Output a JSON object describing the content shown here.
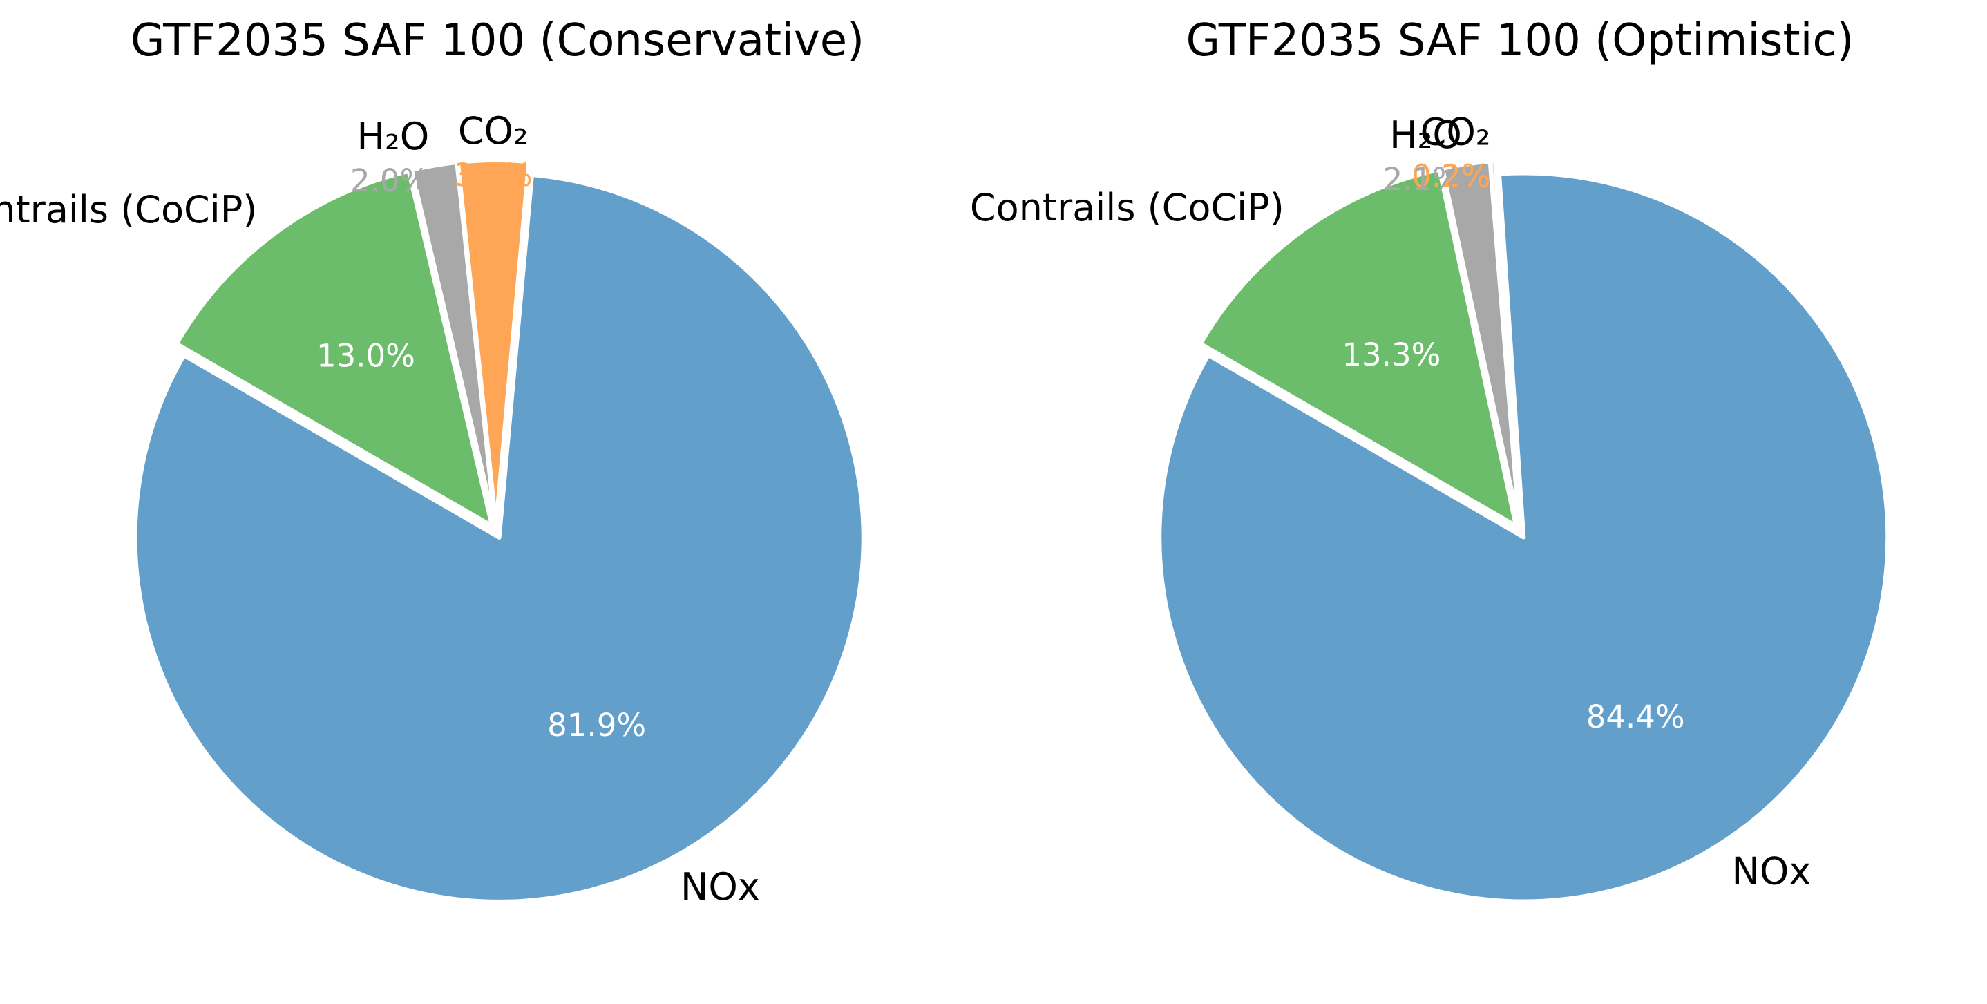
{
  "chart_data": [
    {
      "type": "pie",
      "title": "GTF2035 SAF 100 (Conservative)",
      "slices": [
        {
          "label": "NOx",
          "value": 81.9,
          "pct_label": "81.9%",
          "color": "#639fcb"
        },
        {
          "label": "CO₂",
          "value": 3.1,
          "pct_label": "3.1%",
          "color": "#fea656"
        },
        {
          "label": "H₂O",
          "value": 2.0,
          "pct_label": "2.0%",
          "color": "#a8a8a8"
        },
        {
          "label": "Contrails (CoCiP)",
          "value": 13.0,
          "pct_label": "13.0%",
          "color": "#6cbd6b"
        }
      ]
    },
    {
      "type": "pie",
      "title": "GTF2035 SAF 100 (Optimistic)",
      "slices": [
        {
          "label": "NOx",
          "value": 84.4,
          "pct_label": "84.4%",
          "color": "#639fcb"
        },
        {
          "label": "CO₂",
          "value": 0.2,
          "pct_label": "0.2%",
          "color": "#fea656"
        },
        {
          "label": "H₂O",
          "value": 2.1,
          "pct_label": "2.1%",
          "color": "#a8a8a8"
        },
        {
          "label": "Contrails (CoCiP)",
          "value": 13.3,
          "pct_label": "13.3%",
          "color": "#6cbd6b"
        }
      ]
    }
  ]
}
